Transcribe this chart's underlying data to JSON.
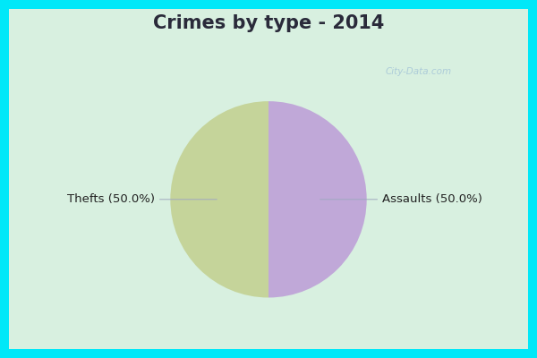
{
  "title": "Crimes by type - 2014",
  "slices": [
    50.0,
    50.0
  ],
  "labels": [
    "Thefts (50.0%)",
    "Assaults (50.0%)"
  ],
  "colors": [
    "#c5d49a",
    "#c0a8d8"
  ],
  "background_cyan": "#00e8f8",
  "background_inner": "#d8f0e0",
  "title_fontsize": 15,
  "label_fontsize": 9.5,
  "startangle": 90,
  "title_color": "#2a2a3a",
  "label_color": "#222222",
  "watermark_color": "#a8c8d8",
  "line_color": "#a0a8c0"
}
